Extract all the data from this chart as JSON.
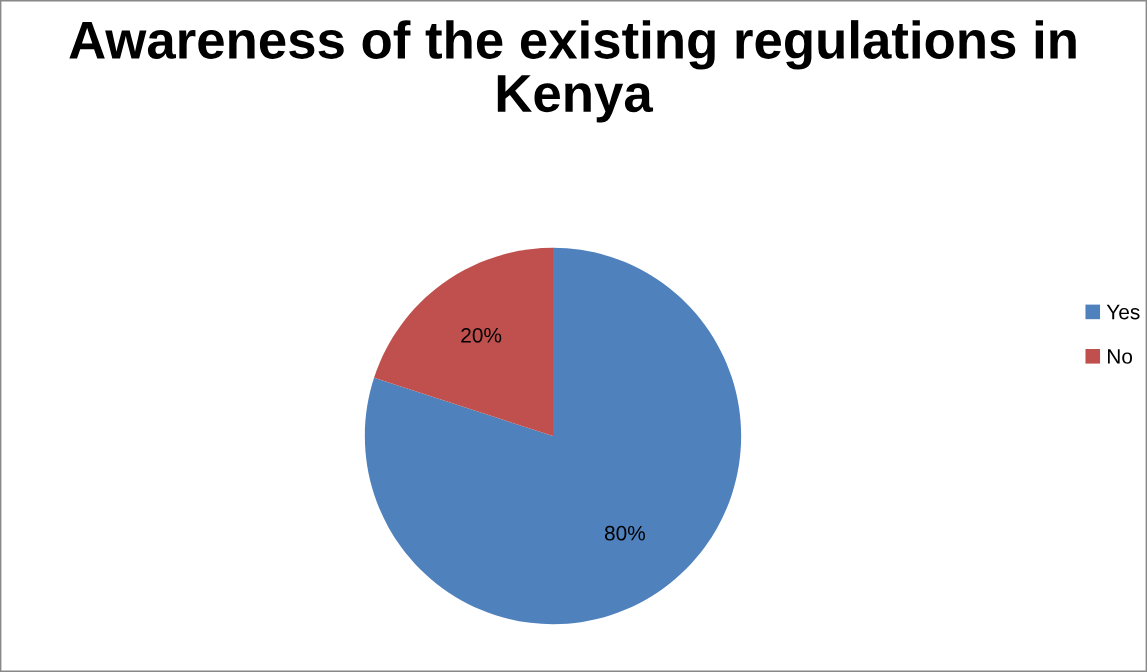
{
  "chart_data": {
    "type": "pie",
    "title": "Awareness of the existing regulations in Kenya",
    "categories": [
      "Yes",
      "No"
    ],
    "values": [
      80,
      20
    ],
    "colors": [
      "#4f81bd",
      "#c0504d"
    ],
    "value_labels": [
      "80%",
      "20%"
    ],
    "legend": "right"
  }
}
